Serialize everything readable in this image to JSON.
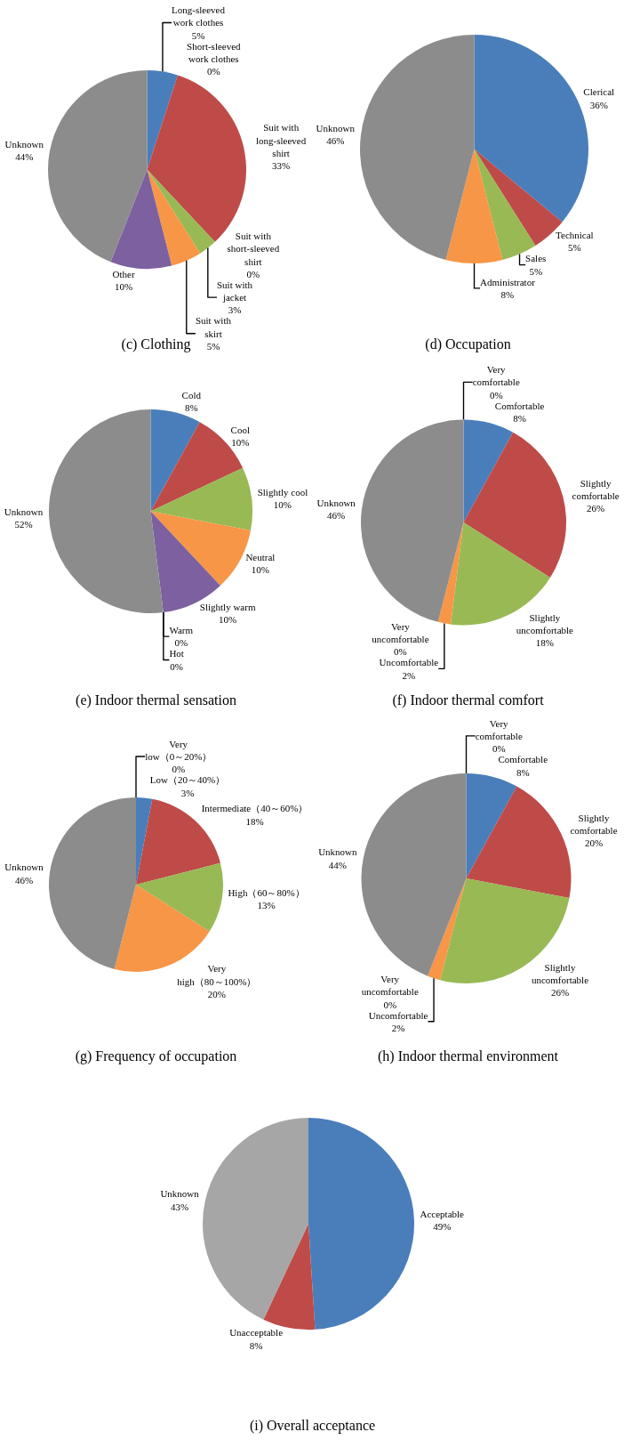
{
  "chart_data": [
    {
      "type": "pie",
      "title": "(c) Clothing",
      "categories": [
        "Long-sleeved work clothes",
        "Short-sleeved work clothes",
        "Suit with long-sleeved shirt",
        "Suit with short-sleeved shirt",
        "Suit with jacket",
        "Suit with skirt",
        "Other",
        "Unknown"
      ],
      "values": [
        5,
        0,
        33,
        0,
        3,
        5,
        10,
        44
      ],
      "colors": [
        "#4a7ebb",
        "#4bacc6",
        "#be4b48",
        "#2c4d75",
        "#98b954",
        "#f79646",
        "#7d60a0",
        "#8c8c8c"
      ],
      "value_labels": [
        "5%",
        "0%",
        "33%",
        "0%",
        "3%",
        "5%",
        "10%",
        "44%"
      ]
    },
    {
      "type": "pie",
      "title": "(d) Occupation",
      "categories": [
        "Clerical",
        "Technical",
        "Sales",
        "Administrator",
        "Unknown"
      ],
      "values": [
        36,
        5,
        5,
        8,
        46
      ],
      "colors": [
        "#4a7ebb",
        "#be4b48",
        "#98b954",
        "#f79646",
        "#8c8c8c"
      ],
      "value_labels": [
        "36%",
        "5%",
        "5%",
        "8%",
        "46%"
      ]
    },
    {
      "type": "pie",
      "title": "(e) Indoor thermal sensation",
      "categories": [
        "Cold",
        "Cool",
        "Slightly cool",
        "Neutral",
        "Slightly warm",
        "Warm",
        "Hot",
        "Unknown"
      ],
      "values": [
        8,
        10,
        10,
        10,
        10,
        0,
        0,
        52
      ],
      "colors": [
        "#4a7ebb",
        "#be4b48",
        "#98b954",
        "#f79646",
        "#7d60a0",
        "#4bacc6",
        "#2c4d75",
        "#8c8c8c"
      ],
      "value_labels": [
        "8%",
        "10%",
        "10%",
        "10%",
        "10%",
        "0%",
        "0%",
        "52%"
      ]
    },
    {
      "type": "pie",
      "title": "(f) Indoor thermal comfort",
      "categories": [
        "Very comfortable",
        "Comfortable",
        "Slightly comfortable",
        "Slightly uncomfortable",
        "Uncomfortable",
        "Very uncomfortable",
        "Unknown"
      ],
      "values": [
        0,
        8,
        26,
        18,
        2,
        0,
        46
      ],
      "colors": [
        "#7d60a0",
        "#4a7ebb",
        "#be4b48",
        "#98b954",
        "#f79646",
        "#4bacc6",
        "#8c8c8c"
      ],
      "value_labels": [
        "0%",
        "8%",
        "26%",
        "18%",
        "2%",
        "0%",
        "46%"
      ]
    },
    {
      "type": "pie",
      "title": "(g) Frequency of occupation",
      "categories": [
        "Very low（0～20%）",
        "Low（20～40%）",
        "Intermediate（40～60%）",
        "High（60～80%）",
        "Very high（80～100%）",
        "Unknown"
      ],
      "values": [
        0,
        3,
        18,
        13,
        20,
        46
      ],
      "colors": [
        "#7d60a0",
        "#4a7ebb",
        "#be4b48",
        "#98b954",
        "#f79646",
        "#8c8c8c"
      ],
      "value_labels": [
        "0%",
        "3%",
        "18%",
        "13%",
        "20%",
        "46%"
      ]
    },
    {
      "type": "pie",
      "title": "(h) Indoor thermal environment",
      "categories": [
        "Very comfortable",
        "Comfortable",
        "Slightly comfortable",
        "Slightly uncomfortable",
        "Uncomfortable",
        "Very uncomfortable",
        "Unknown"
      ],
      "values": [
        0,
        8,
        20,
        26,
        2,
        0,
        44
      ],
      "colors": [
        "#7d60a0",
        "#4a7ebb",
        "#be4b48",
        "#98b954",
        "#f79646",
        "#4bacc6",
        "#8c8c8c"
      ],
      "value_labels": [
        "0%",
        "8%",
        "20%",
        "26%",
        "2%",
        "0%",
        "44%"
      ]
    },
    {
      "type": "pie",
      "title": "(i) Overall acceptance",
      "categories": [
        "Acceptable",
        "Unacceptable",
        "Unknown"
      ],
      "values": [
        49,
        8,
        43
      ],
      "colors": [
        "#4a7ebb",
        "#be4b48",
        "#a6a6a6"
      ],
      "value_labels": [
        "49%",
        "8%",
        "43%"
      ]
    }
  ]
}
